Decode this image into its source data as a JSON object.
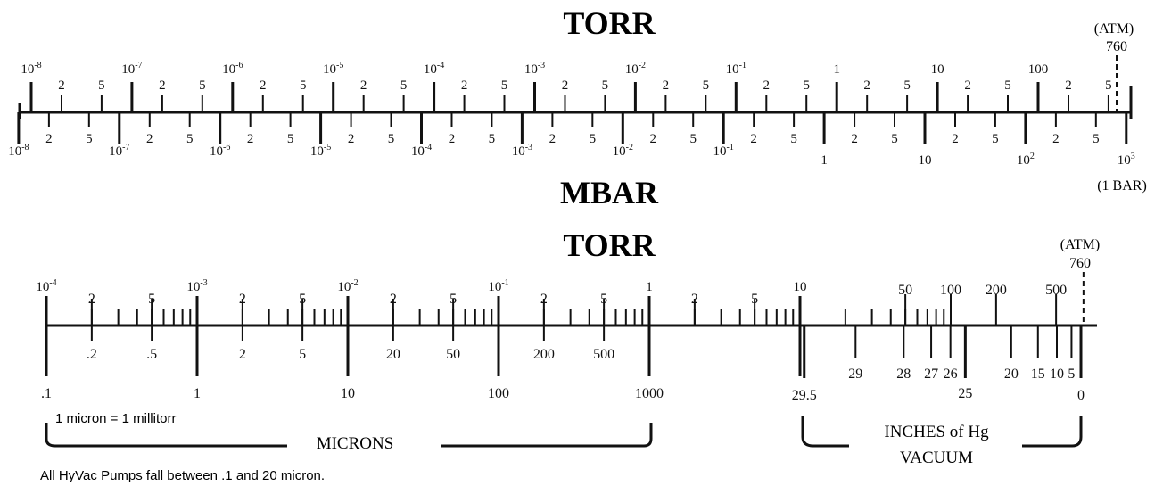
{
  "top_chart": {
    "title_top": "TORR",
    "title_bottom": "MBAR",
    "atm_label": "(ATM)",
    "atm_value": "760",
    "bar_label": "(1 BAR)",
    "torr_decades": [
      {
        "base": "10",
        "exp": "-8"
      },
      {
        "base": "10",
        "exp": "-7"
      },
      {
        "base": "10",
        "exp": "-6"
      },
      {
        "base": "10",
        "exp": "-5"
      },
      {
        "base": "10",
        "exp": "-4"
      },
      {
        "base": "10",
        "exp": "-3"
      },
      {
        "base": "10",
        "exp": "-2"
      },
      {
        "base": "10",
        "exp": "-1"
      },
      {
        "base": "1",
        "exp": ""
      },
      {
        "base": "10",
        "exp": ""
      },
      {
        "base": "100",
        "exp": ""
      }
    ],
    "mbar_decades": [
      {
        "base": "10",
        "exp": "-8"
      },
      {
        "base": "10",
        "exp": "-7"
      },
      {
        "base": "10",
        "exp": "-6"
      },
      {
        "base": "10",
        "exp": "-5"
      },
      {
        "base": "10",
        "exp": "-4"
      },
      {
        "base": "10",
        "exp": "-3"
      },
      {
        "base": "10",
        "exp": "-2"
      },
      {
        "base": "10",
        "exp": "-1"
      },
      {
        "base": "1",
        "exp": ""
      },
      {
        "base": "10",
        "exp": ""
      },
      {
        "base": "10",
        "exp": "2"
      },
      {
        "base": "10",
        "exp": "3"
      }
    ],
    "sub_labels": [
      "2",
      "5"
    ]
  },
  "bottom_chart": {
    "title": "TORR",
    "atm_label": "(ATM)",
    "atm_value": "760",
    "torr_major": [
      "10-4",
      "10-3",
      "10-2",
      "10-1",
      "1",
      "10"
    ],
    "torr_major_parts": [
      {
        "base": "10",
        "exp": "-4"
      },
      {
        "base": "10",
        "exp": "-3"
      },
      {
        "base": "10",
        "exp": "-2"
      },
      {
        "base": "10",
        "exp": "-1"
      },
      {
        "base": "1",
        "exp": ""
      },
      {
        "base": "10",
        "exp": ""
      }
    ],
    "torr_upper_labels": [
      "2",
      "5",
      "2",
      "5",
      "2",
      "5",
      "2",
      "5",
      "2",
      "5",
      "2",
      "5",
      "50",
      "100",
      "200",
      "500"
    ],
    "micron_upper_labels": [
      ".2",
      ".5",
      "2",
      "5",
      "20",
      "50",
      "200",
      "500"
    ],
    "micron_major": [
      ".1",
      "1",
      "10",
      "100",
      "1000"
    ],
    "hg_labels": [
      "29",
      "28",
      "27",
      "26",
      "20",
      "15",
      "10",
      "5"
    ],
    "hg_major": [
      "29.5",
      "25",
      "0"
    ],
    "note_micron": "1 micron = 1 millitorr",
    "microns_label": "MICRONS",
    "hg_label_line1": "INCHES of Hg",
    "hg_label_line2": "VACUUM",
    "footnote": "All HyVac Pumps fall between .1 and 20 micron."
  }
}
